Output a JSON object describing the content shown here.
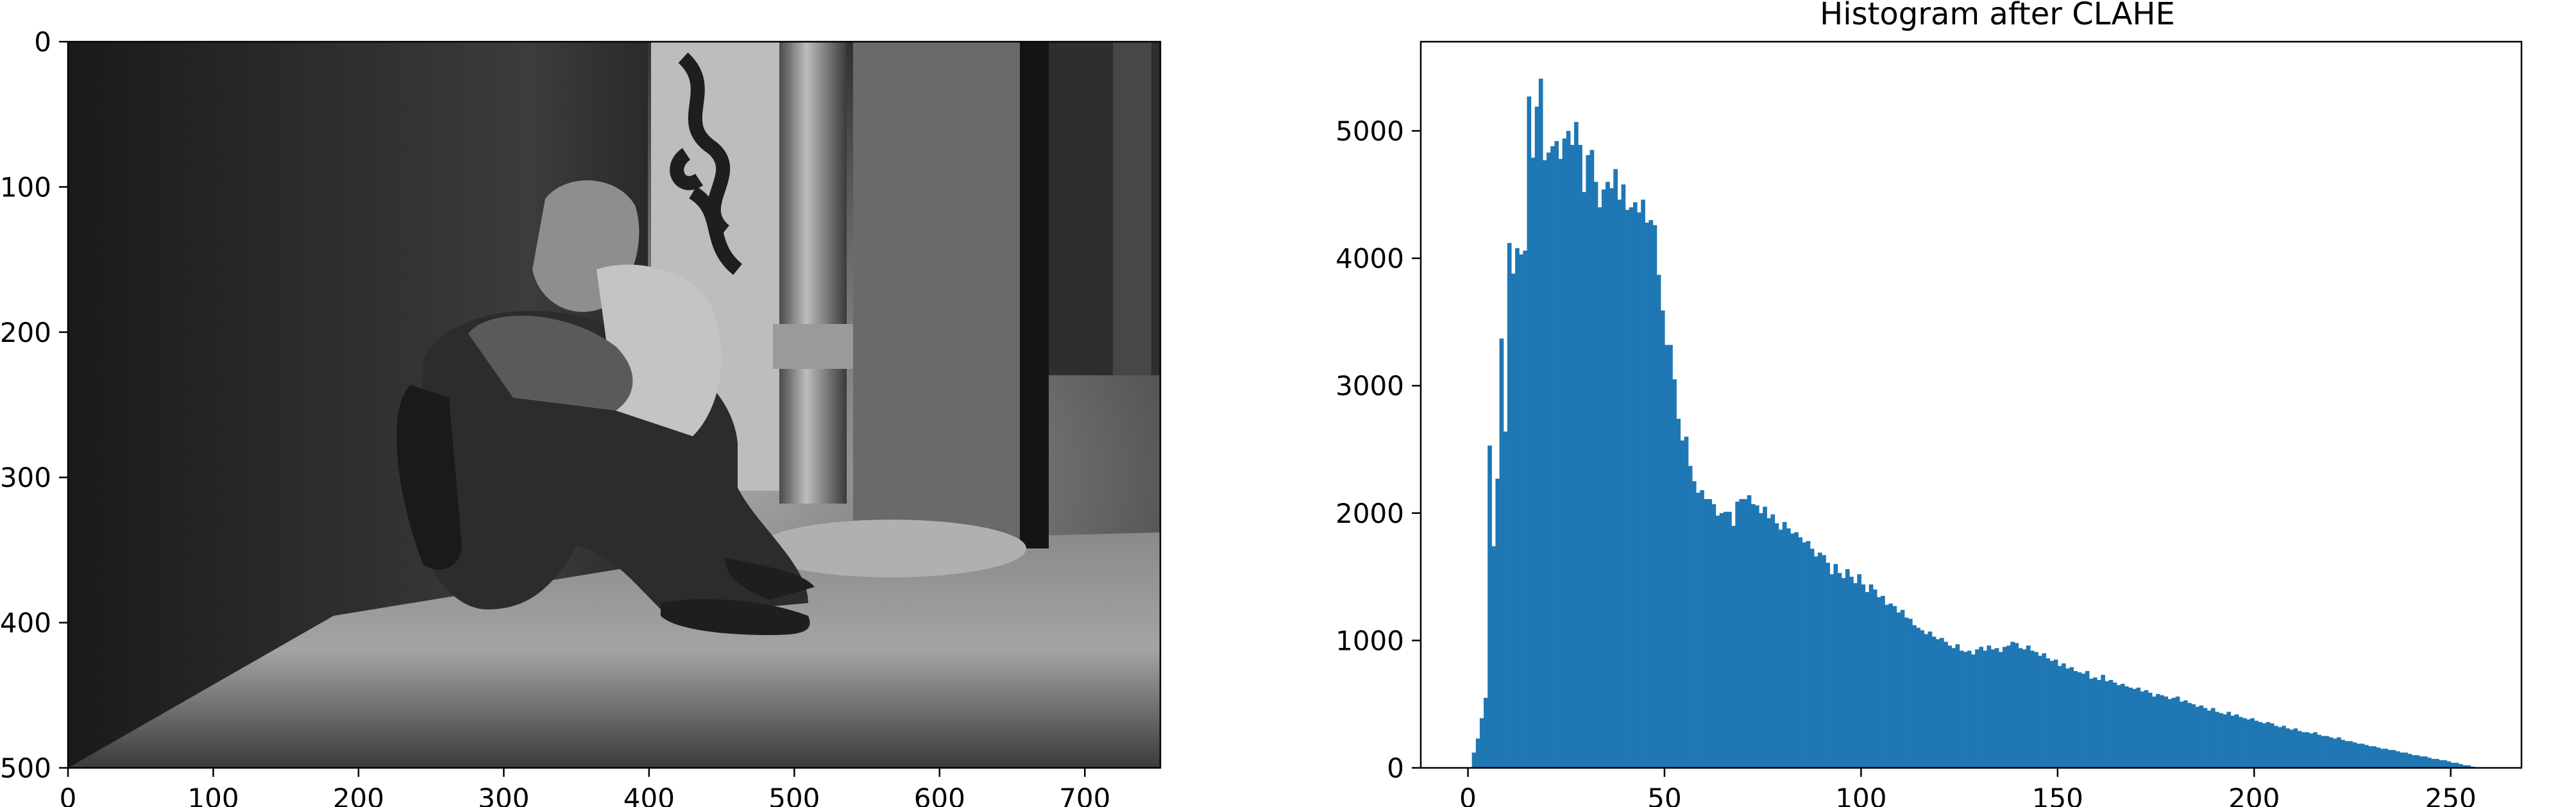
{
  "chart_data": [
    {
      "type": "image",
      "description_visible": "grayscale photo",
      "xlim": [
        0,
        752
      ],
      "ylim": [
        500,
        0
      ],
      "xticks": [
        0,
        100,
        200,
        300,
        400,
        500,
        600,
        700
      ],
      "yticks": [
        0,
        100,
        200,
        300,
        400,
        500
      ]
    },
    {
      "type": "bar",
      "title": "Histogram after CLAHE",
      "xlim": [
        -12,
        268
      ],
      "ylim": [
        0,
        5700
      ],
      "xticks": [
        0,
        50,
        100,
        150,
        200,
        250
      ],
      "yticks": [
        0,
        1000,
        2000,
        3000,
        4000,
        5000
      ],
      "color": "#1f77b4",
      "bin_width": 1,
      "bins_start": 0,
      "values": [
        0,
        120,
        230,
        390,
        550,
        2530,
        1740,
        2270,
        3370,
        2640,
        4120,
        3880,
        4080,
        4030,
        4060,
        5270,
        4790,
        5190,
        5410,
        4770,
        4830,
        4880,
        4920,
        4780,
        4940,
        5000,
        4890,
        5070,
        4890,
        4520,
        4810,
        4850,
        4600,
        4400,
        4540,
        4600,
        4550,
        4700,
        4460,
        4580,
        4380,
        4400,
        4440,
        4360,
        4460,
        4280,
        4300,
        4260,
        3870,
        3590,
        3320,
        3320,
        3050,
        2740,
        2570,
        2600,
        2370,
        2250,
        2160,
        2180,
        2110,
        2110,
        2070,
        1980,
        2000,
        2010,
        2010,
        1900,
        2090,
        2110,
        2110,
        2140,
        2070,
        2060,
        2000,
        2050,
        1960,
        1990,
        1920,
        1870,
        1930,
        1880,
        1840,
        1850,
        1810,
        1770,
        1780,
        1720,
        1660,
        1690,
        1670,
        1610,
        1520,
        1600,
        1530,
        1490,
        1560,
        1500,
        1450,
        1520,
        1440,
        1380,
        1440,
        1400,
        1340,
        1350,
        1280,
        1290,
        1270,
        1220,
        1240,
        1180,
        1170,
        1120,
        1100,
        1080,
        1050,
        1070,
        1030,
        1010,
        1020,
        990,
        960,
        940,
        970,
        920,
        910,
        920,
        890,
        930,
        950,
        920,
        960,
        930,
        940,
        910,
        950,
        960,
        990,
        980,
        940,
        930,
        960,
        920,
        910,
        880,
        900,
        860,
        840,
        850,
        800,
        820,
        780,
        790,
        760,
        750,
        740,
        760,
        700,
        710,
        690,
        730,
        680,
        690,
        670,
        650,
        660,
        640,
        630,
        620,
        630,
        600,
        610,
        590,
        560,
        580,
        570,
        560,
        540,
        550,
        560,
        520,
        530,
        510,
        500,
        480,
        490,
        470,
        450,
        470,
        440,
        430,
        420,
        440,
        410,
        420,
        400,
        390,
        380,
        390,
        370,
        360,
        350,
        360,
        350,
        330,
        320,
        330,
        310,
        300,
        310,
        290,
        280,
        280,
        270,
        280,
        260,
        250,
        250,
        240,
        230,
        240,
        220,
        210,
        210,
        200,
        190,
        190,
        180,
        170,
        170,
        160,
        150,
        150,
        140,
        140,
        130,
        120,
        120,
        110,
        100,
        100,
        90,
        90,
        80,
        70,
        70,
        60,
        60,
        50,
        40,
        40,
        30,
        20,
        20,
        10,
        0,
        0
      ]
    }
  ]
}
